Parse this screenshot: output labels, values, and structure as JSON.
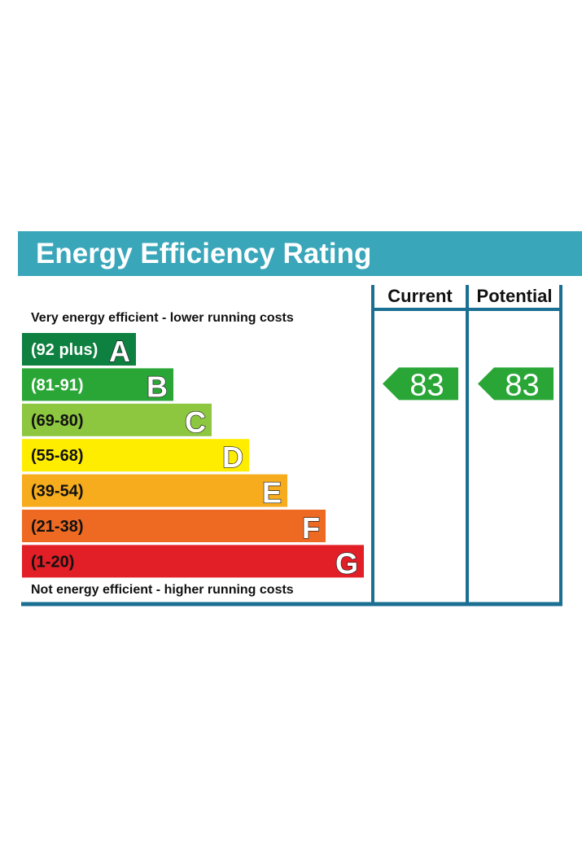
{
  "title": "Energy Efficiency Rating",
  "top_caption": "Very energy efficient - lower running costs",
  "bottom_caption": "Not energy efficient - higher running costs",
  "columns": {
    "current": "Current",
    "potential": "Potential"
  },
  "colors": {
    "header_bg": "#3aa6b9",
    "frame": "#1b6f93",
    "band_A": "#0e8040",
    "band_B": "#2aa637",
    "band_C": "#8dc63f",
    "band_D": "#ffed00",
    "band_E": "#f6ac1d",
    "band_F": "#ee6a23",
    "band_G": "#e21e26"
  },
  "chart_data": {
    "type": "bar",
    "categories": [
      "A",
      "B",
      "C",
      "D",
      "E",
      "F",
      "G"
    ],
    "bands": [
      {
        "letter": "A",
        "range": "(92 plus)",
        "min": 92,
        "max": null,
        "color": "#0e8040",
        "text_color": "#ffffff"
      },
      {
        "letter": "B",
        "range": "(81-91)",
        "min": 81,
        "max": 91,
        "color": "#2aa637",
        "text_color": "#ffffff"
      },
      {
        "letter": "C",
        "range": "(69-80)",
        "min": 69,
        "max": 80,
        "color": "#8dc63f",
        "text_color": "#111111"
      },
      {
        "letter": "D",
        "range": "(55-68)",
        "min": 55,
        "max": 68,
        "color": "#ffed00",
        "text_color": "#111111"
      },
      {
        "letter": "E",
        "range": "(39-54)",
        "min": 39,
        "max": 54,
        "color": "#f6ac1d",
        "text_color": "#111111"
      },
      {
        "letter": "F",
        "range": "(21-38)",
        "min": 21,
        "max": 38,
        "color": "#ee6a23",
        "text_color": "#111111"
      },
      {
        "letter": "G",
        "range": "(1-20)",
        "min": 1,
        "max": 20,
        "color": "#e21e26",
        "text_color": "#111111"
      }
    ],
    "series": [
      {
        "name": "Current",
        "value": 83,
        "band": "B"
      },
      {
        "name": "Potential",
        "value": 83,
        "band": "B"
      }
    ]
  }
}
